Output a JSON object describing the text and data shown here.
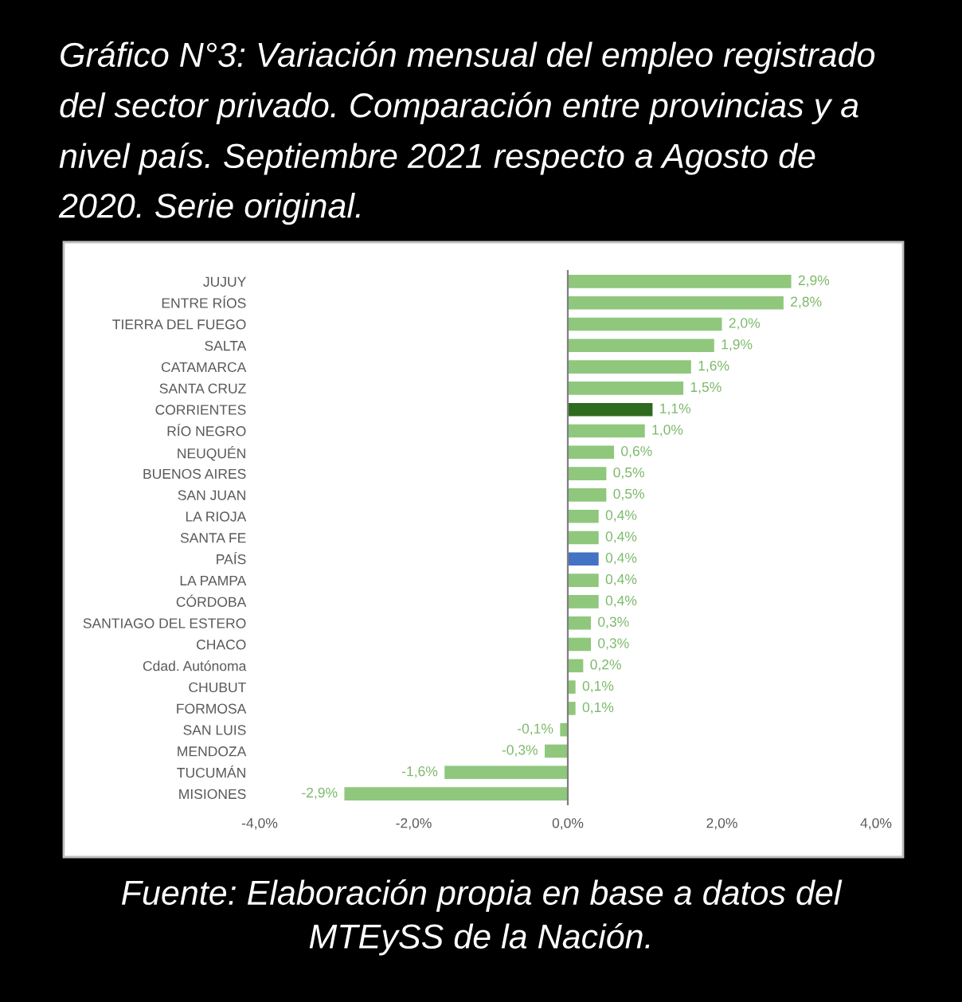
{
  "chart_data": {
    "type": "bar",
    "orientation": "horizontal",
    "title": "Gráfico N°3: Variación mensual del empleo registrado del sector privado. Comparación entre provincias y a nivel país. Septiembre 2021 respecto a Agosto de 2020. Serie original.",
    "annotations": [
      "Fuente: Elaboración propia en base a datos del MTEySS de la Nación."
    ],
    "categories": [
      "JUJUY",
      "ENTRE RÍOS",
      "TIERRA DEL FUEGO",
      "SALTA",
      "CATAMARCA",
      "SANTA CRUZ",
      "CORRIENTES",
      "RÍO NEGRO",
      "NEUQUÉN",
      "BUENOS AIRES",
      "SAN JUAN",
      "LA RIOJA",
      "SANTA FE",
      "PAÍS",
      "LA PAMPA",
      "CÓRDOBA",
      "SANTIAGO DEL ESTERO",
      "CHACO",
      "Cdad. Autónoma",
      "CHUBUT",
      "FORMOSA",
      "SAN LUIS",
      "MENDOZA",
      "TUCUMÁN",
      "MISIONES"
    ],
    "values": [
      2.9,
      2.8,
      2.0,
      1.9,
      1.6,
      1.5,
      1.1,
      1.0,
      0.6,
      0.5,
      0.5,
      0.4,
      0.4,
      0.4,
      0.4,
      0.4,
      0.3,
      0.3,
      0.2,
      0.1,
      0.1,
      -0.1,
      -0.3,
      -1.6,
      -2.9
    ],
    "colors": [
      "#8fc87c",
      "#8fc87c",
      "#8fc87c",
      "#8fc87c",
      "#8fc87c",
      "#8fc87c",
      "#2e6b1e",
      "#8fc87c",
      "#8fc87c",
      "#8fc87c",
      "#8fc87c",
      "#8fc87c",
      "#8fc87c",
      "#4472c4",
      "#8fc87c",
      "#8fc87c",
      "#8fc87c",
      "#8fc87c",
      "#8fc87c",
      "#8fc87c",
      "#8fc87c",
      "#8fc87c",
      "#8fc87c",
      "#8fc87c",
      "#8fc87c"
    ],
    "value_labels": [
      "2,9%",
      "2,8%",
      "2,0%",
      "1,9%",
      "1,6%",
      "1,5%",
      "1,1%",
      "1,0%",
      "0,6%",
      "0,5%",
      "0,5%",
      "0,4%",
      "0,4%",
      "0,4%",
      "0,4%",
      "0,4%",
      "0,3%",
      "0,3%",
      "0,2%",
      "0,1%",
      "0,1%",
      "-0,1%",
      "-0,3%",
      "-1,6%",
      "-2,9%"
    ],
    "xlim": [
      -4,
      4
    ],
    "xticks": [
      {
        "value": -4,
        "label": "-4,0%"
      },
      {
        "value": -2,
        "label": "-2,0%"
      },
      {
        "value": 0,
        "label": "0,0%"
      },
      {
        "value": 2,
        "label": "2,0%"
      },
      {
        "value": 4,
        "label": "4,0%"
      }
    ]
  }
}
